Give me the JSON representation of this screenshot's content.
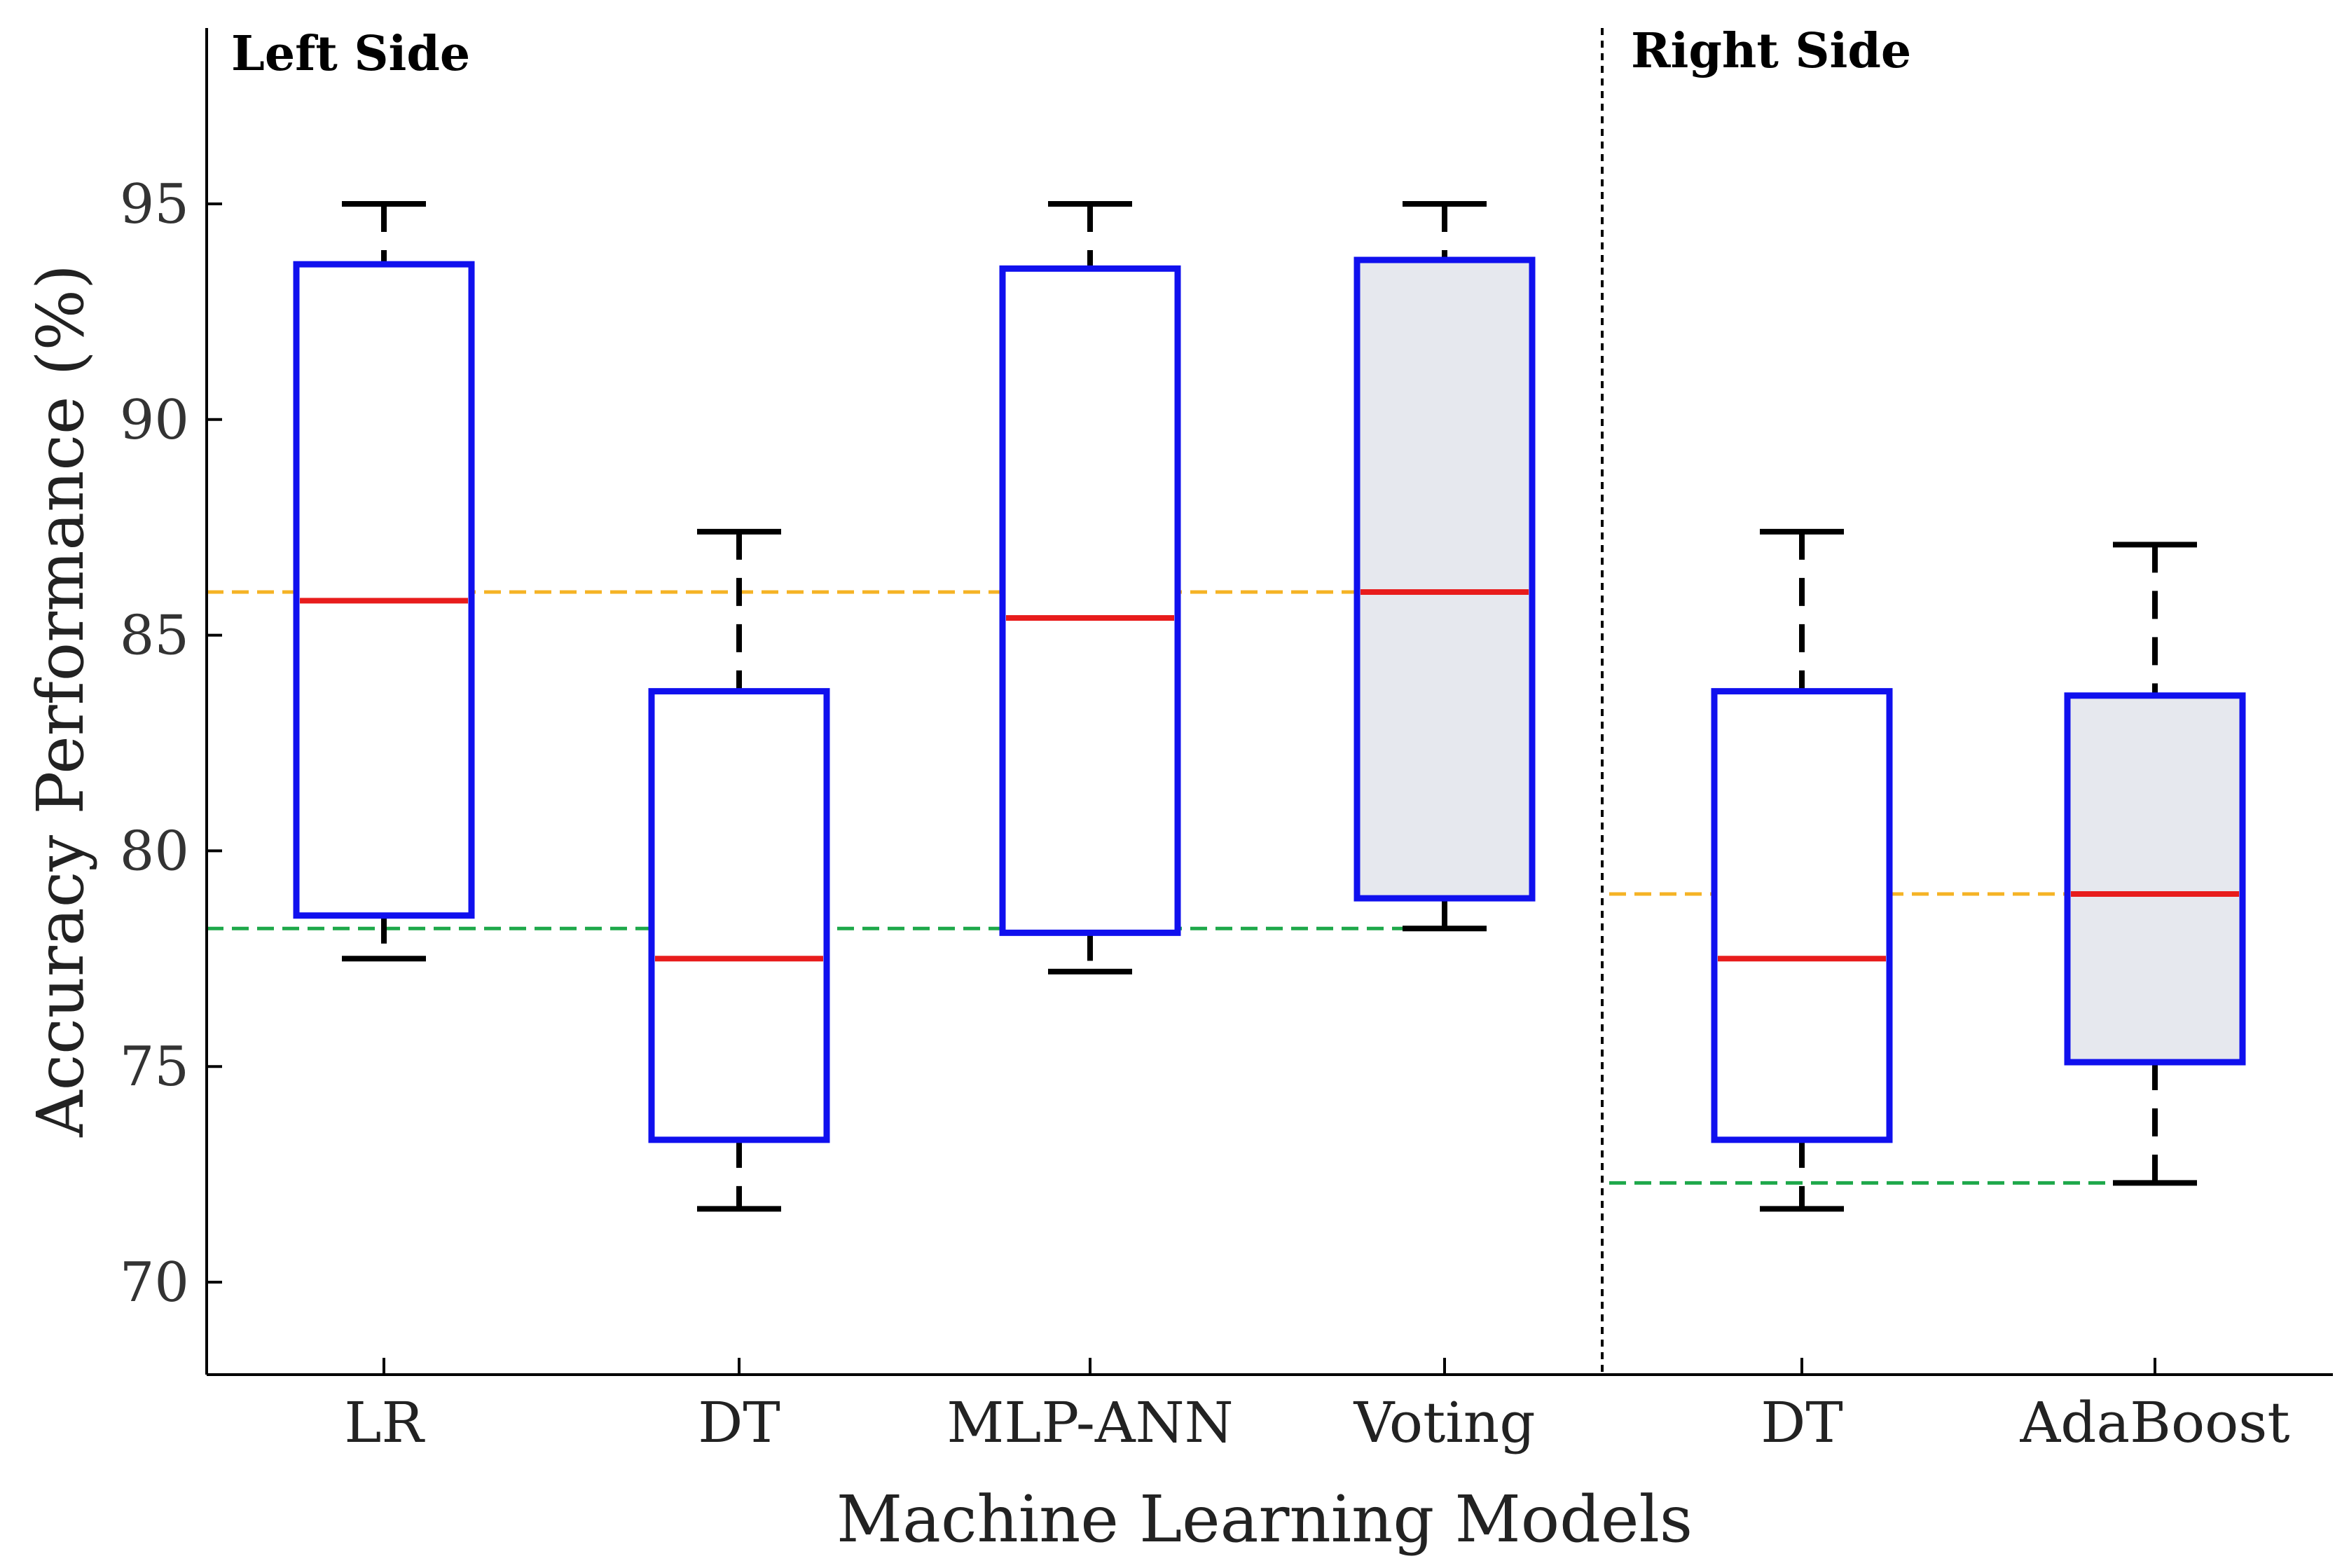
{
  "chart_data": {
    "type": "boxplot",
    "xlabel": "Machine Learning Models",
    "ylabel": "Accuracy Performance (%)",
    "ylim": [
      68,
      98
    ],
    "yticks": [
      70,
      75,
      80,
      85,
      90,
      95
    ],
    "panels": [
      {
        "label": "Left Side",
        "categories": [
          "LR",
          "DT",
          "MLP-ANN",
          "Voting"
        ]
      },
      {
        "label": "Right Side",
        "categories": [
          "DT",
          "AdaBoost"
        ]
      }
    ],
    "boxes": [
      {
        "category": "LR",
        "panel": "Left Side",
        "min": 77.5,
        "q1": 78.5,
        "median": 85.8,
        "q3": 93.6,
        "max": 95.0,
        "filled": false
      },
      {
        "category": "DT",
        "panel": "Left Side",
        "min": 71.7,
        "q1": 73.3,
        "median": 77.5,
        "q3": 83.7,
        "max": 87.4,
        "filled": false
      },
      {
        "category": "MLP-ANN",
        "panel": "Left Side",
        "min": 77.2,
        "q1": 78.1,
        "median": 85.4,
        "q3": 93.5,
        "max": 95.0,
        "filled": false
      },
      {
        "category": "Voting",
        "panel": "Left Side",
        "min": 78.2,
        "q1": 78.9,
        "median": 86.0,
        "q3": 93.7,
        "max": 95.0,
        "filled": true
      },
      {
        "category": "DT",
        "panel": "Right Side",
        "min": 71.7,
        "q1": 73.3,
        "median": 77.5,
        "q3": 83.7,
        "max": 87.4,
        "filled": false
      },
      {
        "category": "AdaBoost",
        "panel": "Right Side",
        "min": 72.3,
        "q1": 75.1,
        "median": 79.0,
        "q3": 83.6,
        "max": 87.1,
        "filled": true
      }
    ],
    "reference_lines": [
      {
        "panel": "Left Side",
        "value": 86.0,
        "color": "#f5b325",
        "style": "dashed"
      },
      {
        "panel": "Left Side",
        "value": 78.2,
        "color": "#1ea84a",
        "style": "dashed"
      },
      {
        "panel": "Right Side",
        "value": 79.0,
        "color": "#f5b325",
        "style": "dashed"
      },
      {
        "panel": "Right Side",
        "value": 72.3,
        "color": "#1ea84a",
        "style": "dashed"
      }
    ],
    "colors": {
      "box_edge": "#1010ee",
      "median": "#e81c1c",
      "whisker": "#000000",
      "box_fill": "#e6e8ee",
      "divider": "#000000"
    }
  }
}
